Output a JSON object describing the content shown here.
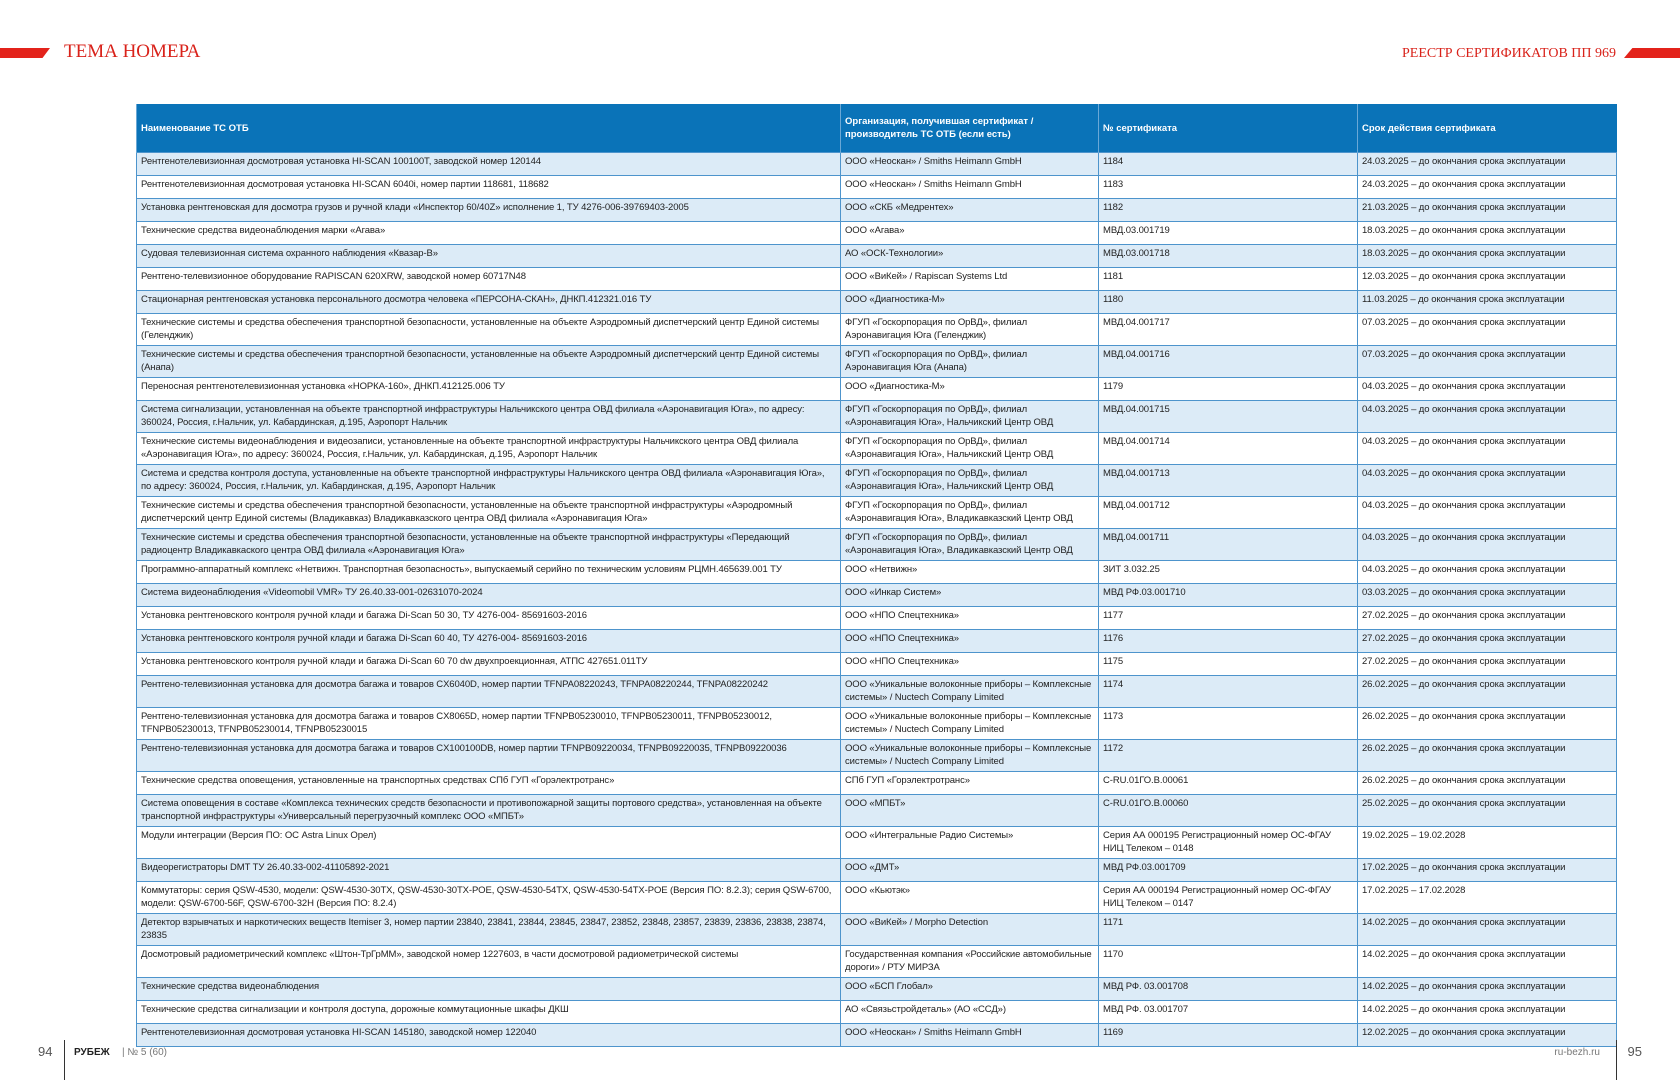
{
  "header": {
    "section": "ТЕМА НОМЕРА",
    "topic": "РЕЕСТР СЕРТИФИКАТОВ ПП 969"
  },
  "table": {
    "header": [
      "Наименование ТС ОТБ",
      "Организация, получившая сертификат / производитель ТС ОТБ (если есть)",
      "№ сертификата",
      "Срок действия сертификата"
    ],
    "rows": [
      [
        "Рентгенотелевизионная досмотровая установка HI-SCAN 100100T, заводской номер 120144",
        "ООО «Неоскан» / Smiths Heimann GmbH",
        "1184",
        "24.03.2025 – до окончания срока эксплуатации"
      ],
      [
        "Рентгенотелевизионная досмотровая установка HI-SCAN 6040i, номер партии 118681, 118682",
        "ООО «Неоскан» / Smiths Heimann GmbH",
        "1183",
        "24.03.2025 – до окончания срока эксплуатации"
      ],
      [
        "Установка рентгеновская для досмотра грузов и ручной клади «Инспектор 60/40Z» исполнение 1, ТУ 4276-006-39769403-2005",
        "ООО «СКБ «Медрентех»",
        "1182",
        "21.03.2025 – до окончания срока эксплуатации"
      ],
      [
        "Технические средства видеонаблюдения марки «Агава»",
        "ООО «Агава»",
        "МВД.03.001719",
        "18.03.2025 – до окончания срока эксплуатации"
      ],
      [
        "Судовая телевизионная система охранного наблюдения «Квазар-В»",
        "АО «ОСК-Технологии»",
        "МВД.03.001718",
        "18.03.2025 – до окончания срока эксплуатации"
      ],
      [
        "Рентгено-телевизионное оборудование RAPISCAN 620XRW, заводской номер 60717N48",
        "ООО «ВиКей» / Rapiscan Systems Ltd",
        "1181",
        "12.03.2025 – до окончания срока эксплуатации"
      ],
      [
        "Стационарная рентгеновская установка персонального досмотра человека «ПЕРСОНА-СКАН», ДНКП.412321.016 ТУ",
        "ООО «Диагностика-М»",
        "1180",
        "11.03.2025 – до окончания срока эксплуатации"
      ],
      [
        "Технические системы и средства обеспечения транспортной безопасности, установленные на объекте Аэродромный диспетчерский центр Единой системы (Геленджик)",
        "ФГУП «Госкорпорация по ОрВД», филиал Аэронавигация Юга (Геленджик)",
        "МВД.04.001717",
        "07.03.2025 – до окончания срока эксплуатации"
      ],
      [
        "Технические системы и средства обеспечения транспортной безопасности, установленные на объекте Аэродромный диспетчерский центр Единой системы (Анапа)",
        "ФГУП «Госкорпорация по ОрВД», филиал Аэронавигация Юга (Анапа)",
        "МВД.04.001716",
        "07.03.2025 – до окончания срока эксплуатации"
      ],
      [
        "Переносная рентгенотелевизионная установка «НОРКА-160», ДНКП.412125.006 ТУ",
        "ООО «Диагностика-М»",
        "1179",
        "04.03.2025 – до окончания срока эксплуатации"
      ],
      [
        "Система сигнализации, установленная на объекте транспортной инфраструктуры Нальчикского центра ОВД филиала «Аэронавигация Юга», по адресу: 360024, Россия, г.Нальчик, ул. Кабардинская, д.195, Аэропорт Нальчик",
        "ФГУП «Госкорпорация по ОрВД», филиал «Аэронавигация Юга», Нальчикский Центр ОВД",
        "МВД.04.001715",
        "04.03.2025 – до окончания срока эксплуатации"
      ],
      [
        "Технические системы видеонаблюдения и видеозаписи, установленные на объекте транспортной инфраструктуры Нальчикского центра ОВД филиала «Аэронавигация Юга», по адресу: 360024, Россия, г.Нальчик, ул. Кабардинская, д.195, Аэропорт Нальчик",
        "ФГУП «Госкорпорация по ОрВД», филиал «Аэронавигация Юга», Нальчикский Центр ОВД",
        "МВД.04.001714",
        "04.03.2025 – до окончания срока эксплуатации"
      ],
      [
        "Система и средства контроля доступа, установленные на объекте транспортной инфраструктуры Нальчикского центра ОВД филиала «Аэронавигация Юга», по адресу: 360024, Россия, г.Нальчик, ул. Кабардинская, д.195, Аэропорт Нальчик",
        "ФГУП «Госкорпорация по ОрВД», филиал «Аэронавигация Юга», Нальчикский Центр ОВД",
        "МВД.04.001713",
        "04.03.2025 – до окончания срока эксплуатации"
      ],
      [
        "Технические системы и средства обеспечения транспортной безопасности, установленные на объекте транспортной инфраструктуры «Аэродромный диспетчерский центр Единой системы (Владикавказ) Владикавказского центра ОВД филиала «Аэронавигация Юга»",
        "ФГУП «Госкорпорация по ОрВД», филиал «Аэронавигация Юга», Владикавказский Центр ОВД",
        "МВД.04.001712",
        "04.03.2025 – до окончания срока эксплуатации"
      ],
      [
        "Технические системы и средства обеспечения транспортной безопасности, установленные на объекте транспортной инфраструктуры «Передающий радиоцентр Владикавкаского центра ОВД филиала «Аэронавигация Юга»",
        "ФГУП «Госкорпорация по ОрВД», филиал «Аэронавигация Юга», Владикавказский Центр ОВД",
        "МВД.04.001711",
        "04.03.2025 – до окончания срока эксплуатации"
      ],
      [
        "Программно-аппаратный комплекс «Нетвижн. Транспортная безопасность», выпускаемый серийно по техническим условиям РЦМН.465639.001 ТУ",
        "ООО «Нетвижн»",
        "ЗИТ 3.032.25",
        "04.03.2025 – до окончания срока эксплуатации"
      ],
      [
        "Система видеонаблюдения «Videomobil VMR» ТУ 26.40.33-001-02631070-2024",
        "ООО «Инкар Систем»",
        "МВД РФ.03.001710",
        "03.03.2025 – до окончания срока эксплуатации"
      ],
      [
        "Установка рентгеновского контроля ручной клади и багажа Di-Scan 50 30, ТУ 4276-004- 85691603-2016",
        "ООО «НПО Спецтехника»",
        "1177",
        "27.02.2025 – до окончания срока эксплуатации"
      ],
      [
        "Установка рентгеновского контроля ручной клади и багажа Di-Scan 60 40, ТУ 4276-004- 85691603-2016",
        "ООО «НПО Спецтехника»",
        "1176",
        "27.02.2025 – до окончания срока эксплуатации"
      ],
      [
        "Установка рентгеновского контроля ручной клади и багажа Di-Scan 60 70 dw двухпроекционная, АТПС 427651.011ТУ",
        "ООО «НПО Спецтехника»",
        "1175",
        "27.02.2025 – до окончания срока эксплуатации"
      ],
      [
        "Рентгено-телевизионная установка для досмотра багажа и товаров CX6040D, номер партии TFNPA08220243, TFNPA08220244, TFNPA08220242",
        "ООО «Уникальные волоконные приборы – Комплексные системы» / Nuctech Company Limited",
        "1174",
        "26.02.2025 – до окончания срока эксплуатации"
      ],
      [
        "Рентгено-телевизионная установка для досмотра багажа и товаров CX8065D, номер партии TFNPB05230010, TFNPB05230011, TFNPB05230012, TFNPB05230013, TFNPB05230014, TFNPB05230015",
        "ООО «Уникальные волоконные приборы – Комплексные системы» / Nuctech Company Limited",
        "1173",
        "26.02.2025 – до окончания срока эксплуатации"
      ],
      [
        "Рентгено-телевизионная установка для досмотра багажа и товаров CX100100DB, номер партии TFNPB09220034, TFNPB09220035, TFNPB09220036",
        "ООО «Уникальные волоконные приборы – Комплексные системы» / Nuctech Company Limited",
        "1172",
        "26.02.2025 – до окончания срока эксплуатации"
      ],
      [
        "Технические средства оповещения, установленные на транспортных средствах СПб ГУП «Горэлектротранс»",
        "СПб ГУП «Горэлектротранс»",
        "C-RU.01ГО.В.00061",
        "26.02.2025 – до окончания срока эксплуатации"
      ],
      [
        "Система оповещения в составе «Комплекса технических средств безопасности и противопожарной защиты портового средства», установленная на объекте транспортной инфраструктуры «Универсальный перегрузочный комплекс ООО «МПБТ»",
        "ООО «МПБТ»",
        "C-RU.01ГО.В.00060",
        "25.02.2025 – до окончания срока эксплуатации"
      ],
      [
        "Модули интеграции (Версия ПО: ОС Astra Linux Орел)",
        "ООО «Интегральные Радио Системы»",
        "Серия АА 000195 Регистрационный номер ОС-ФГАУ НИЦ Телеком – 0148",
        "19.02.2025 – 19.02.2028"
      ],
      [
        "Видеорегистраторы DMT ТУ 26.40.33-002-41105892-2021",
        "ООО «ДМТ»",
        "МВД РФ.03.001709",
        "17.02.2025 – до окончания срока эксплуатации"
      ],
      [
        "Коммутаторы: серия QSW-4530, модели: QSW-4530-30TX, QSW-4530-30TX-POE, QSW-4530-54TX, QSW-4530-54TX-POE (Версия ПО: 8.2.3); серия QSW-6700, модели: QSW-6700-56F, QSW-6700-32H (Версия ПО: 8.2.4)",
        "ООО «Кьютэк»",
        "Серия АА 000194 Регистрационный номер ОС-ФГАУ НИЦ Телеком – 0147",
        "17.02.2025 – 17.02.2028"
      ],
      [
        "Детектор взрывчатых и наркотических веществ Itemiser 3, номер партии 23840, 23841, 23844, 23845, 23847, 23852, 23848, 23857, 23839, 23836, 23838, 23874, 23835",
        "ООО «ВиКей» / Morpho Detection",
        "1171",
        "14.02.2025 – до окончания срока эксплуатации"
      ],
      [
        "Досмотровый радиометрический комплекс «Штон-ТрГрММ», заводской номер 1227603, в части досмотровой радиометрической системы",
        "Государственная компания «Российские автомобильные дороги» / РТУ МИРЗА",
        "1170",
        "14.02.2025 – до окончания срока эксплуатации"
      ],
      [
        "Технические средства видеонаблюдения",
        "ООО «БСП Глобал»",
        "МВД РФ. 03.001708",
        "14.02.2025 – до окончания срока эксплуатации"
      ],
      [
        "Технические средства сигнализации и контроля доступа, дорожные коммутационные шкафы ДКШ",
        "АО «Связьстройдеталь» (АО «ССД»)",
        "МВД РФ. 03.001707",
        "14.02.2025 – до окончания срока эксплуатации"
      ],
      [
        "Рентгенотелевизионная досмотровая установка HI-SCAN 145180, заводской номер 122040",
        "ООО «Неоскан» / Smiths Heimann GmbH",
        "1169",
        "12.02.2025 – до окончания срока эксплуатации"
      ]
    ]
  },
  "footer": {
    "page_left": "94",
    "magazine": "РУБЕЖ",
    "issue": "| № 5 (60)",
    "site": "ru-bezh.ru",
    "page_right": "95"
  }
}
